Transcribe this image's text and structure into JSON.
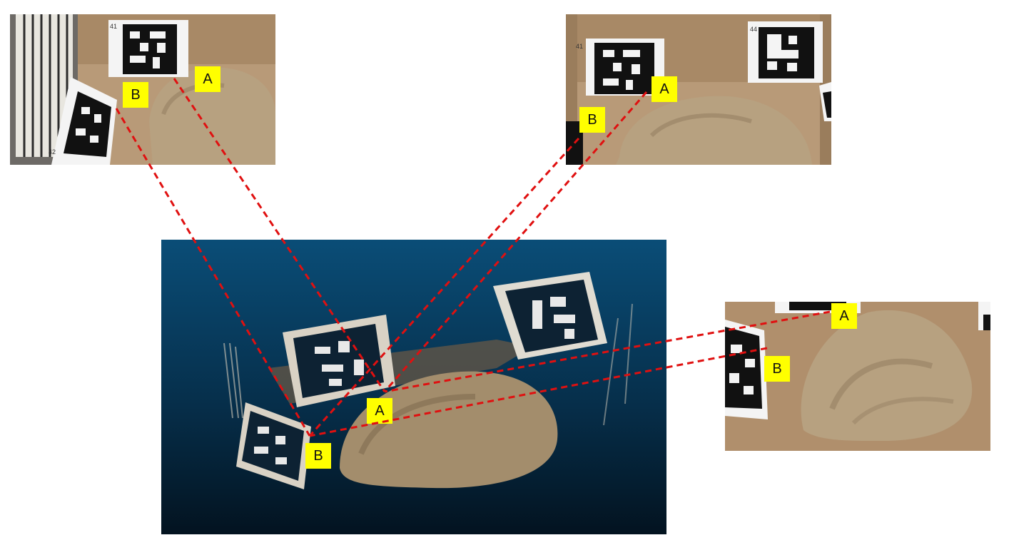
{
  "colors": {
    "canvas_background": "#ffffff",
    "label_fill": "#ffff00",
    "label_text": "#111111",
    "correspondence_line": "#e01010",
    "cloud_top": "#0a4d77",
    "cloud_bottom": "#031320",
    "sand": "#b7a180",
    "cardboard": "#b89a78",
    "marker_black": "#111111",
    "marker_white": "#f4f4f4"
  },
  "photos": {
    "top_left": {
      "labels": {
        "a": "A",
        "b": "B"
      },
      "marker_numbers": [
        "41",
        "42"
      ]
    },
    "top_right": {
      "labels": {
        "a": "A",
        "b": "B"
      },
      "marker_numbers": [
        "41",
        "44"
      ]
    },
    "right": {
      "labels": {
        "a": "A",
        "b": "B"
      }
    }
  },
  "point_cloud": {
    "labels": {
      "a": "A",
      "b": "B"
    }
  },
  "icons": {
    "marker": "aruco-fiducial-marker",
    "line": "dashed-correspondence-line"
  }
}
